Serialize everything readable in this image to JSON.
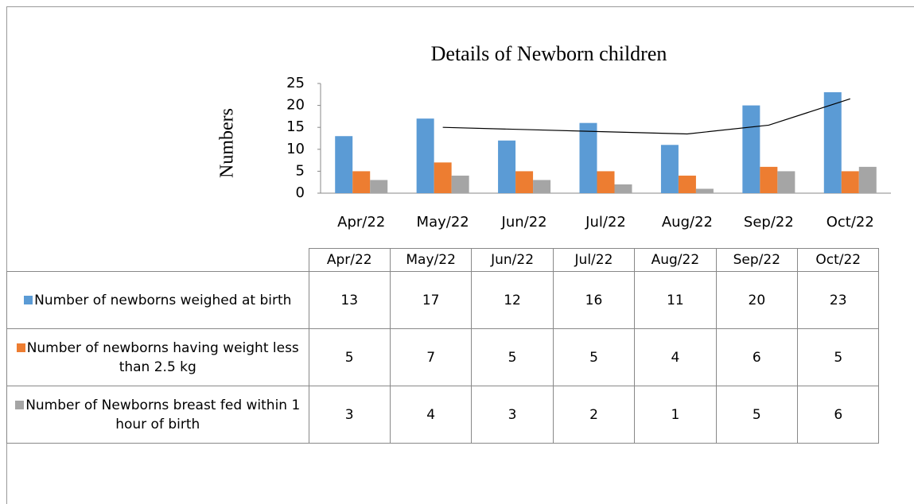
{
  "chart_data": {
    "type": "bar",
    "title": "Details of Newborn children",
    "y_label": "Numbers",
    "categories": [
      "Apr/22",
      "May/22",
      "Jun/22",
      "Jul/22",
      "Aug/22",
      "Sep/22",
      "Oct/22"
    ],
    "series": [
      {
        "name": "Number of newborns weighed at birth",
        "color": "#5b9bd5",
        "values": [
          13,
          17,
          12,
          16,
          11,
          20,
          23
        ]
      },
      {
        "name": "Number of newborns having weight less than 2.5 kg",
        "color": "#ed7d31",
        "values": [
          5,
          7,
          5,
          5,
          4,
          6,
          5
        ]
      },
      {
        "name": "Number of Newborns breast fed within 1 hour of birth",
        "color": "#a5a5a5",
        "values": [
          3,
          4,
          3,
          2,
          1,
          5,
          6
        ]
      }
    ],
    "trendline": {
      "color": "#000000",
      "values": [
        null,
        15,
        14.5,
        14,
        13.5,
        15.5,
        21.5
      ]
    },
    "ylim": [
      0,
      25
    ],
    "yticks": [
      0,
      5,
      10,
      15,
      20,
      25
    ],
    "grid": false,
    "data_table": true
  }
}
